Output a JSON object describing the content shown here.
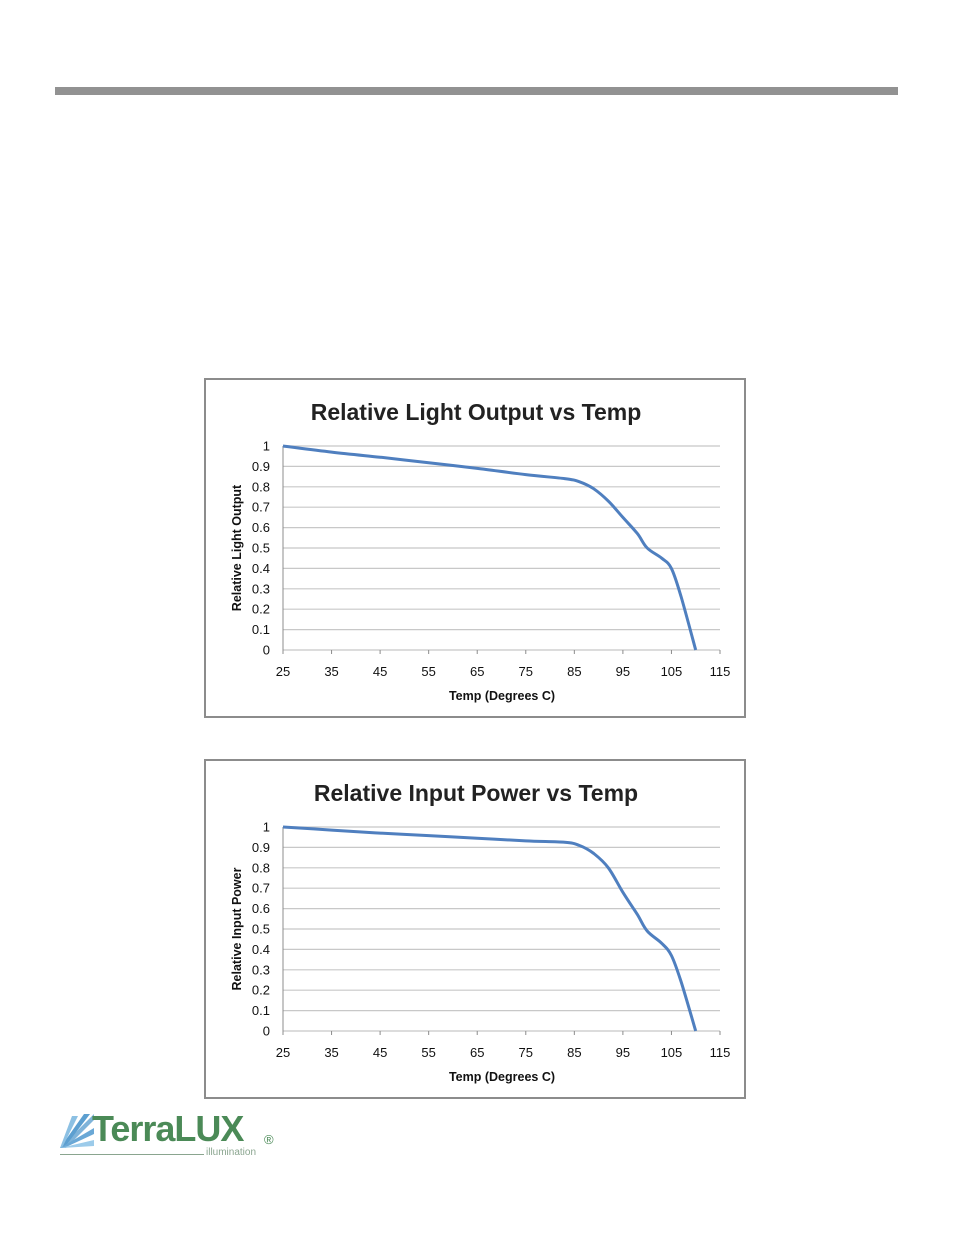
{
  "logo": {
    "name": "TerraLUX",
    "sub": "illumination",
    "reg": "®"
  },
  "chart_data": [
    {
      "type": "line",
      "title": "Relative Light Output vs Temp",
      "xlabel": "Temp (Degrees C)",
      "ylabel": "Relative Light Output",
      "xlim": [
        25,
        115
      ],
      "ylim": [
        0,
        1
      ],
      "x_ticks": [
        "25",
        "35",
        "45",
        "55",
        "65",
        "75",
        "85",
        "95",
        "105",
        "115"
      ],
      "y_ticks": [
        "1",
        "0.9",
        "0.8",
        "0.7",
        "0.6",
        "0.5",
        "0.4",
        "0.3",
        "0.2",
        "0.1",
        "0"
      ],
      "grid": true,
      "color": "#4f7fbf",
      "series": [
        {
          "x": [
            25,
            35,
            45,
            55,
            65,
            75,
            83,
            86,
            89,
            92,
            95,
            98,
            100,
            103,
            105,
            107,
            110
          ],
          "y": [
            1.0,
            0.97,
            0.945,
            0.918,
            0.89,
            0.86,
            0.84,
            0.825,
            0.79,
            0.73,
            0.65,
            0.57,
            0.5,
            0.45,
            0.4,
            0.26,
            0.0
          ]
        }
      ]
    },
    {
      "type": "line",
      "title": "Relative Input Power vs Temp",
      "xlabel": "Temp (Degrees C)",
      "ylabel": "Relative Input Power",
      "xlim": [
        25,
        115
      ],
      "ylim": [
        0,
        1
      ],
      "x_ticks": [
        "25",
        "35",
        "45",
        "55",
        "65",
        "75",
        "85",
        "95",
        "105",
        "115"
      ],
      "y_ticks": [
        "1",
        "0.9",
        "0.8",
        "0.7",
        "0.6",
        "0.5",
        "0.4",
        "0.3",
        "0.2",
        "0.1",
        "0"
      ],
      "grid": true,
      "color": "#4f7fbf",
      "series": [
        {
          "x": [
            25,
            35,
            45,
            55,
            65,
            75,
            83,
            86,
            89,
            92,
            95,
            98,
            100,
            103,
            105,
            107,
            110
          ],
          "y": [
            1.0,
            0.985,
            0.97,
            0.958,
            0.945,
            0.932,
            0.925,
            0.91,
            0.87,
            0.8,
            0.68,
            0.57,
            0.49,
            0.43,
            0.37,
            0.24,
            0.0
          ]
        }
      ]
    }
  ]
}
